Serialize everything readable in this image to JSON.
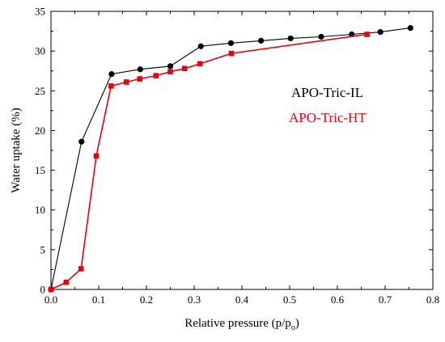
{
  "chart_data": {
    "type": "line",
    "xlabel": "Relative pressure (p/p",
    "xlabel_sub": "o",
    "xlabel_end": ")",
    "ylabel": "Water uptake (%)",
    "xlim": [
      0.0,
      0.8
    ],
    "ylim": [
      0,
      35
    ],
    "xticks": [
      "0.0",
      "0.1",
      "0.2",
      "0.3",
      "0.4",
      "0.5",
      "0.6",
      "0.7",
      "0.8"
    ],
    "yticks": [
      "0",
      "5",
      "10",
      "15",
      "20",
      "25",
      "30",
      "35"
    ],
    "grid": false,
    "legend_placement": "right",
    "series": [
      {
        "name": "APO-Tric-IL",
        "color": "#000000",
        "marker": "circle",
        "x": [
          0.0,
          0.064,
          0.127,
          0.187,
          0.25,
          0.314,
          0.377,
          0.44,
          0.502,
          0.566,
          0.63,
          0.69,
          0.753
        ],
        "y": [
          0.0,
          18.6,
          27.1,
          27.7,
          28.1,
          30.6,
          31.0,
          31.3,
          31.6,
          31.8,
          32.1,
          32.4,
          32.9
        ]
      },
      {
        "name": "APO-Tric-HT",
        "color": "#e8000b",
        "marker": "square",
        "x": [
          0.0,
          0.032,
          0.063,
          0.095,
          0.126,
          0.158,
          0.186,
          0.22,
          0.25,
          0.28,
          0.312,
          0.378,
          0.662
        ],
        "y": [
          0.0,
          0.9,
          2.6,
          16.8,
          25.6,
          26.1,
          26.5,
          26.9,
          27.4,
          27.8,
          28.4,
          29.7,
          32.1
        ]
      }
    ]
  }
}
